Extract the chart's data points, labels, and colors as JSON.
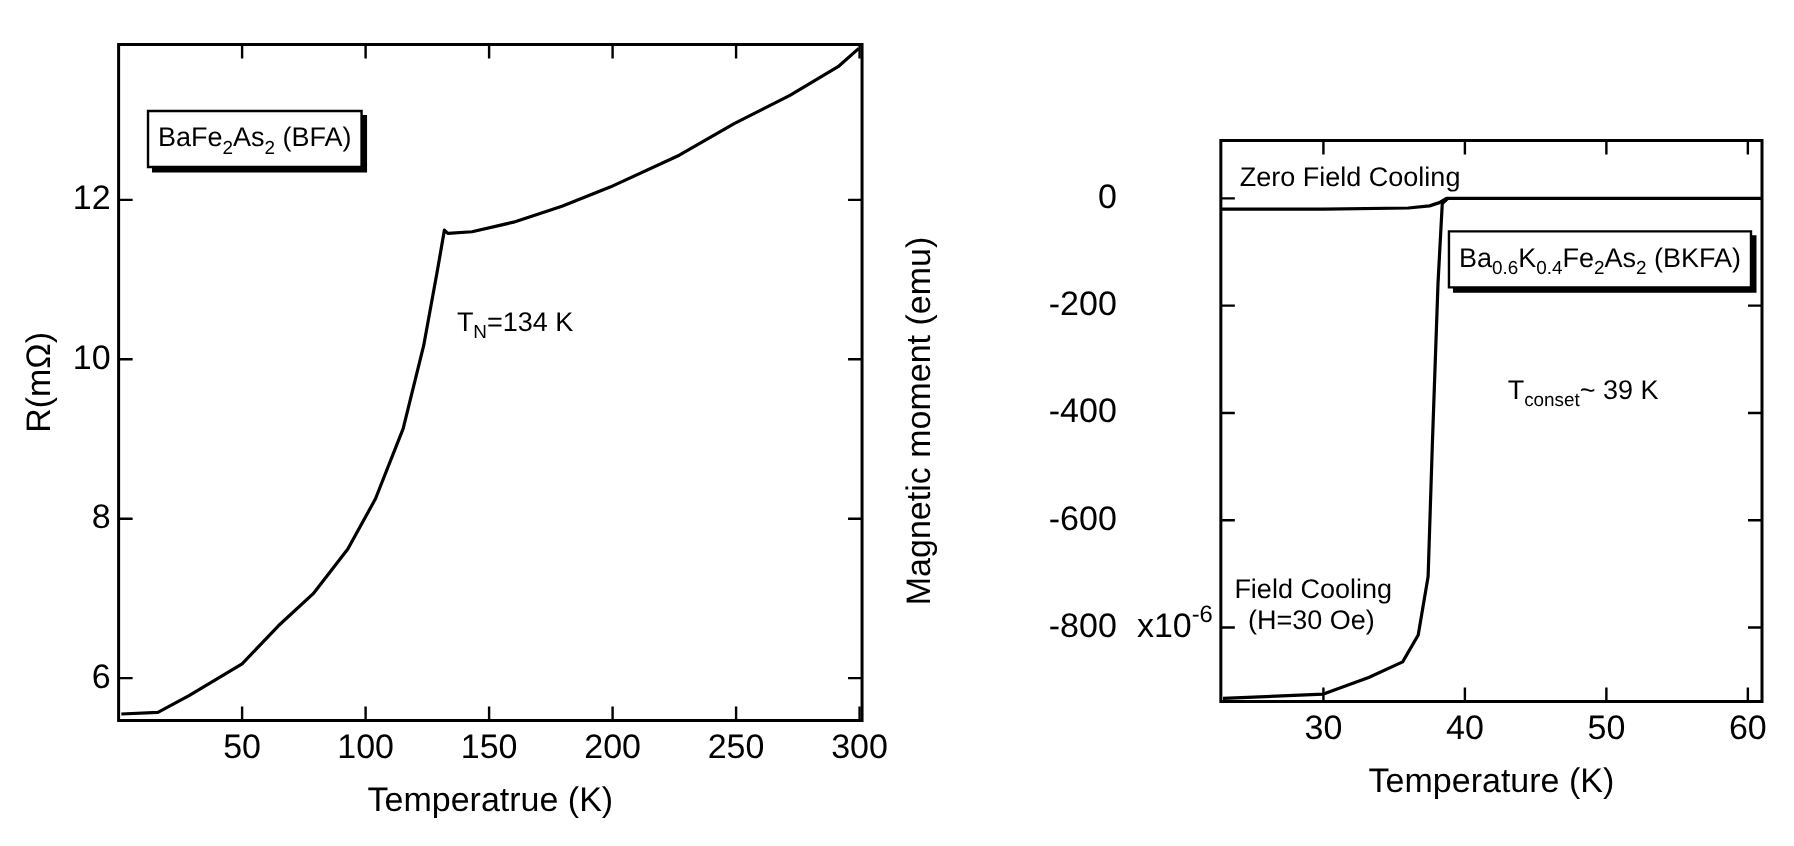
{
  "chart_data": [
    {
      "type": "line",
      "xlabel": "Temperatrue (K)",
      "ylabel": "R(mΩ)",
      "xlim": [
        0,
        301
      ],
      "ylim": [
        5.47,
        13.95
      ],
      "xticks": [
        50,
        100,
        150,
        200,
        250,
        300
      ],
      "yticks": [
        6,
        8,
        10,
        12
      ],
      "series": [
        {
          "color": "#000000",
          "x": [
            1.1,
            15.9,
            28.5,
            50,
            64.8,
            78.8,
            92.8,
            104,
            115.2,
            123.5,
            129.1,
            131.9,
            133.3,
            143.1,
            159.9,
            179.5,
            199,
            227,
            249.4,
            271.8,
            291.3,
            299.7
          ],
          "values": [
            5.55,
            5.57,
            5.78,
            6.18,
            6.66,
            7.06,
            7.62,
            8.25,
            9.13,
            10.17,
            11.12,
            11.62,
            11.58,
            11.6,
            11.72,
            11.92,
            12.16,
            12.56,
            12.96,
            13.31,
            13.67,
            13.9
          ]
        }
      ],
      "annotations": [
        "BaFe$_{2}$As$_{2}$ (BFA)",
        "T$_{N}$=134 K"
      ]
    },
    {
      "type": "line",
      "xlabel": "Temperature (K)",
      "ylabel": "Magnetic moment (emu)",
      "xlim": [
        22.75,
        61
      ],
      "ylim": [
        -938,
        108
      ],
      "xticks": [
        30,
        40,
        50,
        60
      ],
      "yticks": [
        0,
        -200,
        -400,
        -600,
        -800
      ],
      "series": [
        {
          "color": "#000000",
          "x": [
            22.8,
            30,
            36,
            37.5,
            38.2,
            38.7,
            39.5,
            61
          ],
          "values": [
            -20,
            -20,
            -18,
            -14,
            -8,
            0,
            0,
            0
          ]
        },
        {
          "color": "#000000",
          "x": [
            22.9,
            30,
            33.2,
            35.6,
            36.7,
            37.4,
            37.7,
            38.1,
            38.4,
            38.8
          ],
          "values": [
            -932,
            -924,
            -893,
            -864,
            -814,
            -705,
            -458,
            -158,
            -10,
            0
          ]
        }
      ],
      "annotations": [
        "Ba$_{0.6}$K$_{0.4}$Fe$_{2}$As$_{2}$ (BKFA)",
        "Zero Field Cooling",
        "Field Cooling",
        "(H=30 Oe)",
        "T$_{conset}$~ 39 K",
        "x10$^{-6}$"
      ]
    }
  ]
}
